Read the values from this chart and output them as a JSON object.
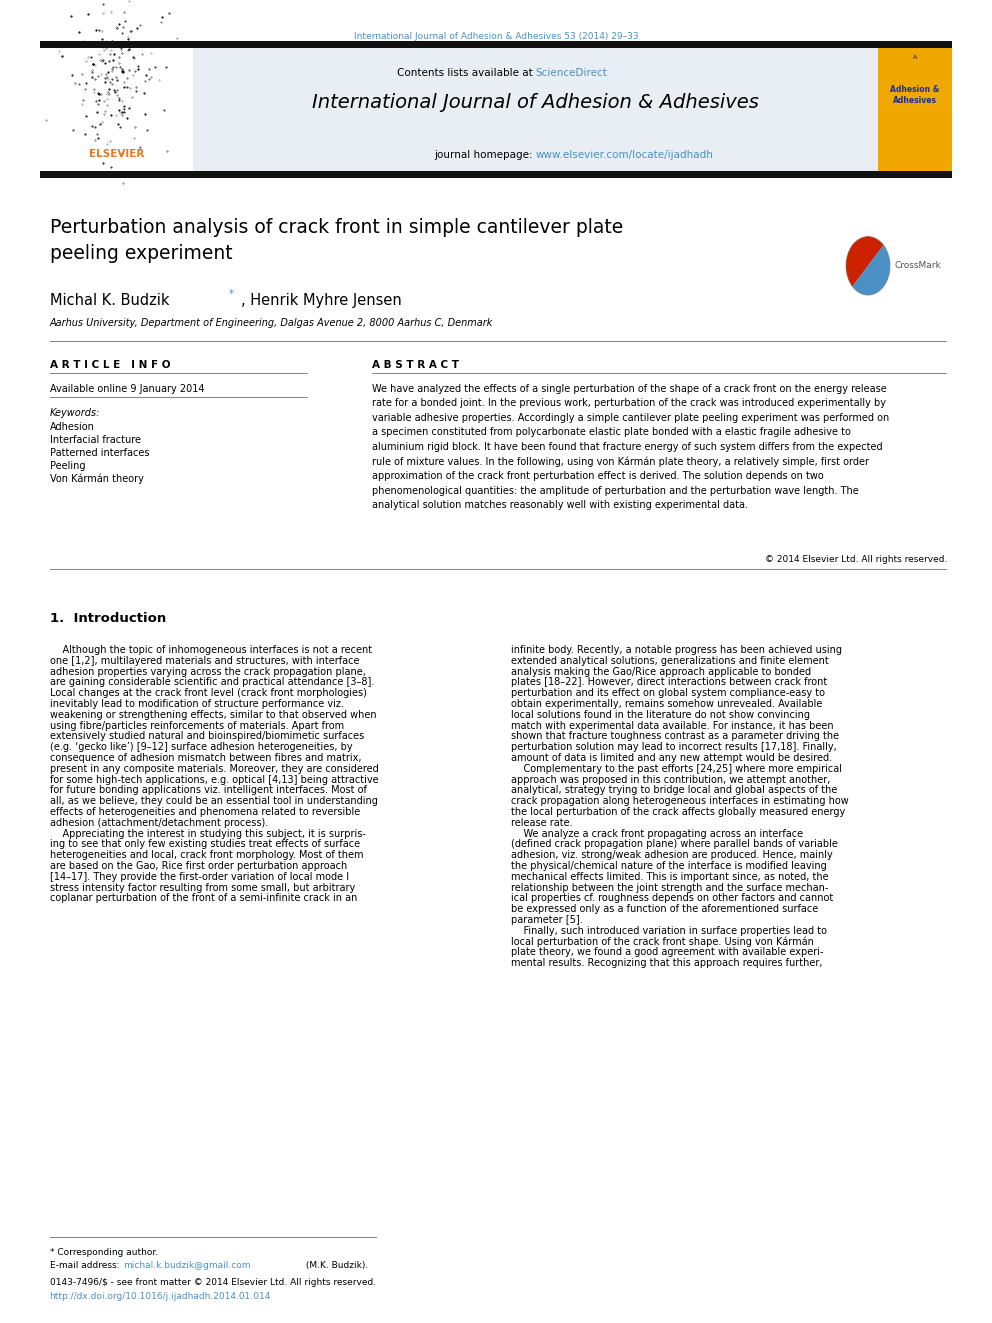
{
  "page_width": 9.92,
  "page_height": 13.23,
  "bg_color": "#ffffff",
  "top_journal_ref": "International Journal of Adhesion & Adhesives 53 (2014) 29–33",
  "top_journal_ref_color": "#4a90c4",
  "header_bg": "#e8eef4",
  "header_journal_title": "International Journal of Adhesion & Adhesives",
  "header_homepage_text": "journal homepage: ",
  "header_homepage_url": "www.elsevier.com/locate/ijadhadh",
  "header_contents_text": "Contents lists available at ",
  "header_sciencedirect": "ScienceDirect",
  "paper_title": "Perturbation analysis of crack front in simple cantilever plate\npeeling experiment",
  "authors": "Michal K. Budzik",
  "authors2": ", Henrik Myhre Jensen",
  "affiliation": "Aarhus University, Department of Engineering, Dalgas Avenue 2, 8000 Aarhus C, Denmark",
  "article_info_header": "A R T I C L E   I N F O",
  "abstract_header": "A B S T R A C T",
  "available_online": "Available online 9 January 2014",
  "keywords_header": "Keywords:",
  "keywords": [
    "Adhesion",
    "Interfacial fracture",
    "Patterned interfaces",
    "Peeling",
    "Von Kármán theory"
  ],
  "abstract_text": "We have analyzed the effects of a single perturbation of the shape of a crack front on the energy release\nrate for a bonded joint. In the previous work, perturbation of the crack was introduced experimentally by\nvariable adhesive properties. Accordingly a simple cantilever plate peeling experiment was performed on\na specimen constituted from polycarbonate elastic plate bonded with a elastic fragile adhesive to\naluminium rigid block. It have been found that fracture energy of such system differs from the expected\nrule of mixture values. In the following, using von Kármán plate theory, a relatively simple, first order\napproximation of the crack front perturbation effect is derived. The solution depends on two\nphenomenological quantities: the amplitude of perturbation and the perturbation wave length. The\nanalytical solution matches reasonably well with existing experimental data.",
  "copyright": "© 2014 Elsevier Ltd. All rights reserved.",
  "section1_header": "1.  Introduction",
  "intro_col1_lines": [
    "    Although the topic of inhomogeneous interfaces is not a recent",
    "one [1,2], multilayered materials and structures, with interface",
    "adhesion properties varying across the crack propagation plane,",
    "are gaining considerable scientific and practical attendance [3–8].",
    "Local changes at the crack front level (crack front morphologies)",
    "inevitably lead to modification of structure performance viz.",
    "weakening or strengthening effects, similar to that observed when",
    "using fibre/particles reinforcements of materials. Apart from",
    "extensively studied natural and bioinspired/biomimetic surfaces",
    "(e.g. ‘gecko like’) [9–12] surface adhesion heterogeneities, by",
    "consequence of adhesion mismatch between fibres and matrix,",
    "present in any composite materials. Moreover, they are considered",
    "for some high-tech applications, e.g. optical [4,13] being attractive",
    "for future bonding applications viz. intelligent interfaces. Most of",
    "all, as we believe, they could be an essential tool in understanding",
    "effects of heterogeneities and phenomena related to reversible",
    "adhesion (attachment/detachment process).",
    "    Appreciating the interest in studying this subject, it is surpris-",
    "ing to see that only few existing studies treat effects of surface",
    "heterogeneities and local, crack front morphology. Most of them",
    "are based on the Gao, Rice first order perturbation approach",
    "[14–17]. They provide the first-order variation of local mode I",
    "stress intensity factor resulting from some small, but arbitrary",
    "coplanar perturbation of the front of a semi-infinite crack in an"
  ],
  "intro_col2_lines": [
    "infinite body. Recently, a notable progress has been achieved using",
    "extended analytical solutions, generalizations and finite element",
    "analysis making the Gao/Rice approach applicable to bonded",
    "plates [18–22]. However, direct interactions between crack front",
    "perturbation and its effect on global system compliance-easy to",
    "obtain experimentally, remains somehow unrevealed. Available",
    "local solutions found in the literature do not show convincing",
    "match with experimental data available. For instance, it has been",
    "shown that fracture toughness contrast as a parameter driving the",
    "perturbation solution may lead to incorrect results [17,18]. Finally,",
    "amount of data is limited and any new attempt would be desired.",
    "    Complementary to the past efforts [24,25] where more empirical",
    "approach was proposed in this contribution, we attempt another,",
    "analytical, strategy trying to bridge local and global aspects of the",
    "crack propagation along heterogeneous interfaces in estimating how",
    "the local perturbation of the crack affects globally measured energy",
    "release rate.",
    "    We analyze a crack front propagating across an interface",
    "(defined crack propagation plane) where parallel bands of variable",
    "adhesion, viz. strong/weak adhesion are produced. Hence, mainly",
    "the physical/chemical nature of the interface is modified leaving",
    "mechanical effects limited. This is important since, as noted, the",
    "relationship between the joint strength and the surface mechan-",
    "ical properties cf. roughness depends on other factors and cannot",
    "be expressed only as a function of the aforementioned surface",
    "parameter [5].",
    "    Finally, such introduced variation in surface properties lead to",
    "local perturbation of the crack front shape. Using von Kármán",
    "plate theory, we found a good agreement with available experi-",
    "mental results. Recognizing that this approach requires further,"
  ],
  "footer_note": "* Corresponding author.",
  "footer_email_label": "E-mail address: ",
  "footer_email": "michal.k.budzik@gmail.com",
  "footer_email_suffix": " (M.K. Budzik).",
  "footer_issn": "0143-7496/$ - see front matter © 2014 Elsevier Ltd. All rights reserved.",
  "footer_doi": "http://dx.doi.org/10.1016/j.ijadhadh.2014.01.014",
  "elsevier_color": "#e87722",
  "link_color": "#4a90c4",
  "dark_bar_color": "#111111",
  "separator_color": "#888888"
}
